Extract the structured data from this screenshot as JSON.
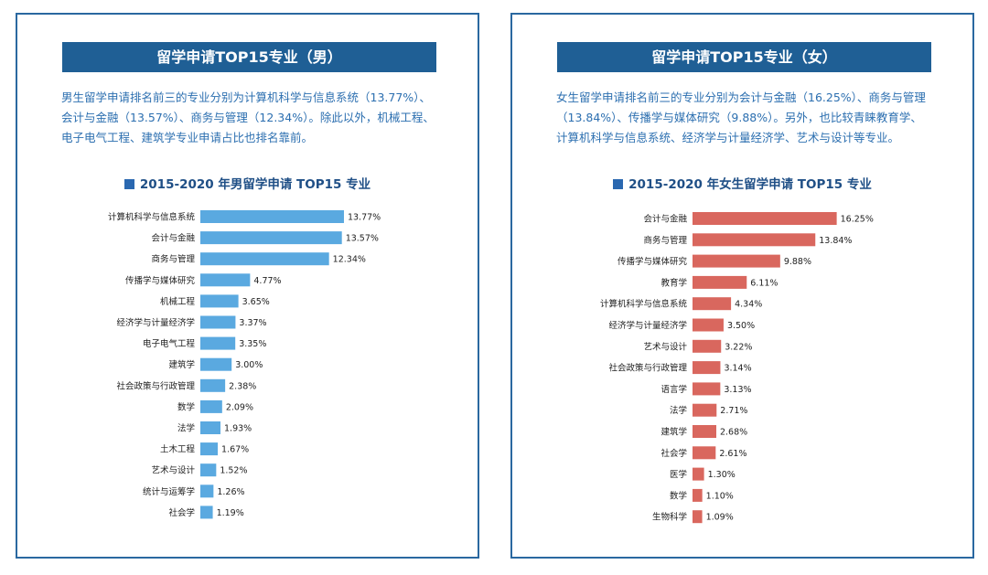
{
  "panels": [
    {
      "header": "留学申请TOP15专业（男）",
      "description": "男生留学申请排名前三的专业分别为计算机科学与信息系统（13.77%）、会计与金融（13.57%）、商务与管理（12.34%）。除此以外，机械工程、电子电气工程、建筑学专业申请占比也排名靠前。",
      "subtitle": "2015-2020 年男留学申请 TOP15 专业"
    },
    {
      "header": "留学申请TOP15专业（女）",
      "description": "女生留学申请排名前三的专业分别为会计与金融（16.25%）、商务与管理（13.84%）、传播学与媒体研究（9.88%）。另外，也比较青睐教育学、计算机科学与信息系统、经济学与计量经济学、艺术与设计等专业。",
      "subtitle": "2015-2020  年女生留学申请  TOP15  专业"
    }
  ],
  "colors": {
    "header": "#1f5f95",
    "male_bar": "#5aa9e0",
    "female_bar": "#d9675e",
    "border": "#2a68a0"
  },
  "chart_data": [
    {
      "type": "bar",
      "orientation": "horizontal",
      "title": "2015-2020 年男留学申请 TOP15 专业",
      "unit": "%",
      "categories": [
        "计算机科学与信息系统",
        "会计与金融",
        "商务与管理",
        "传播学与媒体研究",
        "机械工程",
        "经济学与计量经济学",
        "电子电气工程",
        "建筑学",
        "社会政策与行政管理",
        "数学",
        "法学",
        "土木工程",
        "艺术与设计",
        "统计与运筹学",
        "社会学"
      ],
      "values": [
        13.77,
        13.57,
        12.34,
        4.77,
        3.65,
        3.37,
        3.35,
        3.0,
        2.38,
        2.09,
        1.93,
        1.67,
        1.52,
        1.26,
        1.19
      ],
      "labels": [
        "13.77%",
        "13.57%",
        "12.34%",
        "4.77%",
        "3.65%",
        "3.37%",
        "3.35%",
        "3.00%",
        "2.38%",
        "2.09%",
        "1.93%",
        "1.67%",
        "1.52%",
        "1.26%",
        "1.19%"
      ]
    },
    {
      "type": "bar",
      "orientation": "horizontal",
      "title": "2015-2020  年女生留学申请  TOP15  专业",
      "unit": "%",
      "categories": [
        "会计与金融",
        "商务与管理",
        "传播学与媒体研究",
        "教育学",
        "计算机科学与信息系统",
        "经济学与计量经济学",
        "艺术与设计",
        "社会政策与行政管理",
        "语言学",
        "法学",
        "建筑学",
        "社会学",
        "医学",
        "数学",
        "生物科学"
      ],
      "values": [
        16.25,
        13.84,
        9.88,
        6.11,
        4.34,
        3.5,
        3.22,
        3.14,
        3.13,
        2.71,
        2.68,
        2.61,
        1.3,
        1.1,
        1.09
      ],
      "labels": [
        "16.25%",
        "13.84%",
        "9.88%",
        "6.11%",
        "4.34%",
        "3.50%",
        "3.22%",
        "3.14%",
        "3.13%",
        "2.71%",
        "2.68%",
        "2.61%",
        "1.30%",
        "1.10%",
        "1.09%"
      ]
    }
  ]
}
